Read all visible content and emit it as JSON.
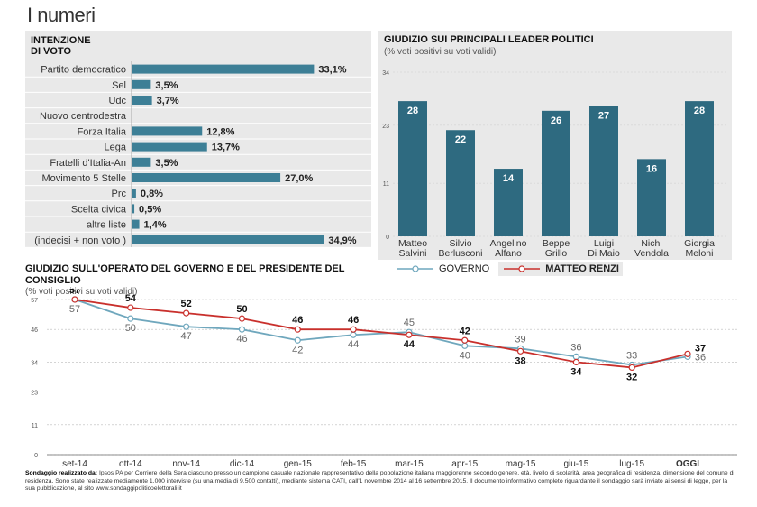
{
  "page_title": "I numeri",
  "colors": {
    "bar": "#2e6a80",
    "bar_light": "#3d7f96",
    "governo": "#6fa7bd",
    "renzi": "#c9302c",
    "panel": "#e9e9e9"
  },
  "chart_data": [
    {
      "type": "bar",
      "orientation": "horizontal",
      "title": "INTENZIONE DI VOTO",
      "title_lines": [
        "INTENZIONE",
        "DI VOTO"
      ],
      "categories": [
        "Partito democratico",
        "Sel",
        "Udc",
        "Nuovo centrodestra",
        "Forza Italia",
        "Lega",
        "Fratelli d'Italia-An",
        "Movimento 5 Stelle",
        "Prc",
        "Scelta civica",
        "altre liste",
        "(indecisi + non voto )"
      ],
      "values": [
        33.1,
        3.5,
        3.7,
        0,
        12.8,
        13.7,
        3.5,
        27.0,
        0.8,
        0.5,
        1.4,
        34.9
      ],
      "value_labels": [
        "33,1%",
        "3,5%",
        "3,7%",
        "",
        "12,8%",
        "13,7%",
        "3,5%",
        "27,0%",
        "0,8%",
        "0,5%",
        "1,4%",
        "34,9%"
      ],
      "xlim": [
        0,
        35
      ]
    },
    {
      "type": "bar",
      "title": "GIUDIZIO SUI PRINCIPALI LEADER POLITICI",
      "subtitle": "(% voti positivi su voti validi)",
      "categories": [
        [
          "Matteo",
          "Salvini"
        ],
        [
          "Silvio",
          "Berlusconi"
        ],
        [
          "Angelino",
          "Alfano"
        ],
        [
          "Beppe",
          "Grillo"
        ],
        [
          "Luigi",
          "Di Maio"
        ],
        [
          "Nichi",
          "Vendola"
        ],
        [
          "Giorgia",
          "Meloni"
        ]
      ],
      "values": [
        28,
        22,
        14,
        26,
        27,
        16,
        28
      ],
      "value_labels": [
        "28",
        "22",
        "14",
        "26",
        "27",
        "16",
        "28"
      ],
      "yticks": [
        "0",
        "11",
        "23",
        "34"
      ],
      "ylim": [
        0,
        34
      ]
    },
    {
      "type": "line",
      "title": "GIUDIZIO SULL'OPERATO DEL GOVERNO E DEL PRESIDENTE DEL CONSIGLIO",
      "subtitle": "(% voti positivi su voti validi)",
      "x": [
        "set-14",
        "ott-14",
        "nov-14",
        "dic-14",
        "gen-15",
        "feb-15",
        "mar-15",
        "apr-15",
        "mag-15",
        "giu-15",
        "lug-15",
        "OGGI"
      ],
      "yticks": [
        "0",
        "11",
        "23",
        "34",
        "46",
        "57"
      ],
      "ylim": [
        0,
        57
      ],
      "series": [
        {
          "name": "GOVERNO",
          "values": [
            57,
            50,
            47,
            46,
            42,
            44,
            45,
            40,
            39,
            36,
            33,
            36
          ]
        },
        {
          "name": "MATTEO RENZI",
          "values": [
            57,
            54,
            52,
            50,
            46,
            46,
            44,
            42,
            38,
            34,
            32,
            37
          ]
        }
      ],
      "legend_position": "top-right"
    }
  ],
  "footnote": {
    "bold": "Sondaggio realizzato da:",
    "text": " Ipsos PA per Corriere della Sera ciascuno presso un campione casuale nazionale rappresentativo della popolazione italiana maggiorenne secondo genere, età, livello di scolarità, area geografica di residenza, dimensione del comune di residenza. Sono state realizzate mediamente 1.000 interviste (su una media di 9.500 contatti), mediante sistema CATI, dall'1 novembre 2014 al 16 settembre 2015. Il documento informativo completo riguardante il sondaggio sarà inviato ai sensi di legge, per la sua pubblicazione, al sito www.sondaggipoliticoelettorali.it"
  }
}
